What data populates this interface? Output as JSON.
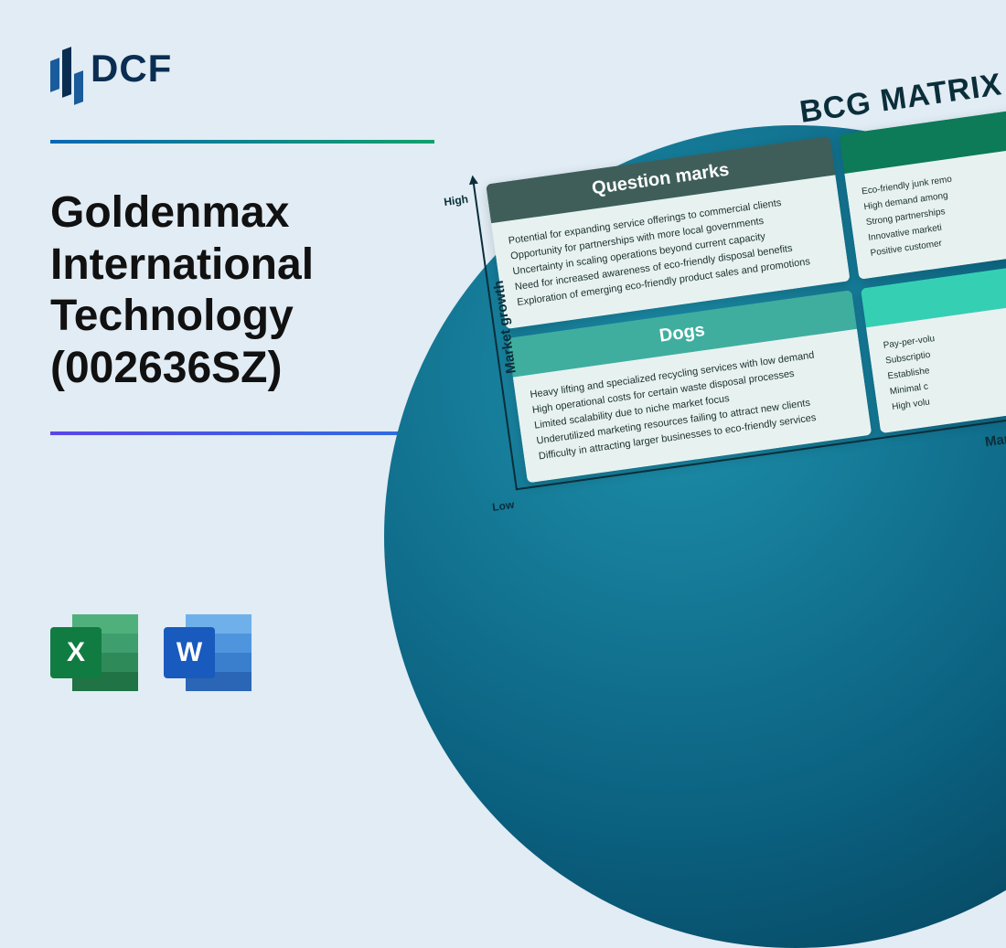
{
  "logo": {
    "text": "DCF"
  },
  "title": "Goldenmax International Technology (002636SZ)",
  "icons": {
    "excel_letter": "X",
    "word_letter": "W"
  },
  "matrix": {
    "title": "BCG MATRIX",
    "y_axis_label": "Market growth",
    "x_axis_label": "Market share",
    "tick_high": "High",
    "tick_low": "Low",
    "question_marks": {
      "heading": "Question marks",
      "items": [
        "Potential for expanding service offerings to commercial clients",
        "Opportunity for partnerships with more local governments",
        "Uncertainty in scaling operations beyond current capacity",
        "Need for increased awareness of eco-friendly disposal benefits",
        "Exploration of emerging eco-friendly product sales and promotions"
      ]
    },
    "dogs": {
      "heading": "Dogs",
      "items": [
        "Heavy lifting and specialized recycling services with low demand",
        "High operational costs for certain waste disposal processes",
        "Limited scalability due to niche market focus",
        "Underutilized marketing resources failing to attract new clients",
        "Difficulty in attracting larger businesses to eco-friendly services"
      ]
    },
    "stars": {
      "heading": "",
      "items": [
        "Eco-friendly junk remo",
        "High demand among",
        "Strong partnerships",
        "Innovative marketi",
        "Positive customer"
      ]
    },
    "cash_cows": {
      "heading": "",
      "items": [
        "Pay-per-volu",
        "Subscriptio",
        "Establishe",
        "Minimal c",
        "High volu"
      ]
    }
  },
  "colors": {
    "page_bg": "#e1ecf4",
    "circle_gradient_inner": "#1e91ac",
    "circle_gradient_outer": "#053a51",
    "rule_top_from": "#0b67b3",
    "rule_top_to": "#12a06b",
    "rule_bottom_from": "#5945e8",
    "rule_bottom_to": "#2d6fe0",
    "q_head": "#3f5e5a",
    "d_head": "#3fae9f",
    "s_head": "#0d7a58",
    "c_head": "#35d0b4",
    "card_body": "#e7f2f0",
    "excel": "#107c41",
    "word": "#185abd"
  }
}
